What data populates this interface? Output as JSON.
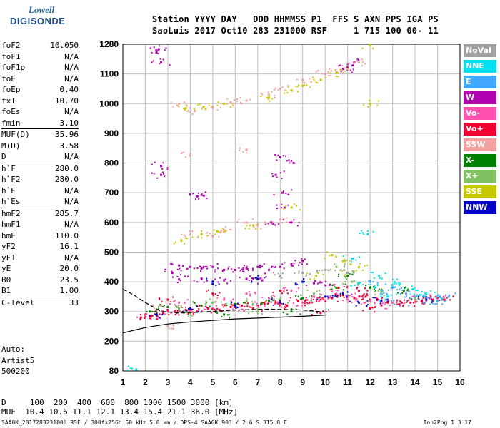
{
  "logo": {
    "top": "Lowell",
    "main": "DIGISONDE"
  },
  "header": {
    "line1": "Station YYYY DAY   DDD HHMMSS P1  FFS S AXN PPS IGA PS",
    "line2": "SaoLuis 2017 Oct10 283 231000 RSF     1 715 100 00- 11"
  },
  "params": [
    [
      [
        "foF2",
        "10.050"
      ],
      [
        "foF1",
        "N/A"
      ],
      [
        "foF1p",
        "N/A"
      ],
      [
        "foE",
        "N/A"
      ],
      [
        "foEp",
        "0.40"
      ],
      [
        "fxI",
        "10.70"
      ],
      [
        "foEs",
        "N/A"
      ],
      [
        "fmin",
        "3.10"
      ]
    ],
    [
      [
        "MUF(D)",
        "35.96"
      ],
      [
        "M(D)",
        "3.58"
      ],
      [
        "D",
        "N/A"
      ]
    ],
    [
      [
        "h`F",
        "280.0"
      ],
      [
        "h`F2",
        "280.0"
      ],
      [
        "h`E",
        "N/A"
      ],
      [
        "h`Es",
        "N/A"
      ]
    ],
    [
      [
        "hmF2",
        "285.7"
      ],
      [
        "hmF1",
        "N/A"
      ],
      [
        "hmE",
        "110.0"
      ],
      [
        "yF2",
        "16.1"
      ],
      [
        "yF1",
        "N/A"
      ],
      [
        "yE",
        "20.0"
      ],
      [
        "B0",
        "23.5"
      ],
      [
        "B1",
        "1.00"
      ]
    ],
    [
      [
        "C-level",
        "33"
      ]
    ]
  ],
  "auto": {
    "line1": "Auto:",
    "line2": "Artist5",
    "line3": "500200"
  },
  "legend": [
    {
      "label": "NoVal",
      "color": "#a0a0a0"
    },
    {
      "label": "NNE",
      "color": "#00e0f0"
    },
    {
      "label": "E",
      "color": "#40a8ff"
    },
    {
      "label": "W",
      "color": "#b000b0"
    },
    {
      "label": "Vo-",
      "color": "#ff50b0"
    },
    {
      "label": "Vo+",
      "color": "#f00030"
    },
    {
      "label": "SSW",
      "color": "#f4a0a0"
    },
    {
      "label": "X-",
      "color": "#008000"
    },
    {
      "label": "X+",
      "color": "#80c060"
    },
    {
      "label": "SSE",
      "color": "#c8c800"
    },
    {
      "label": "NNW",
      "color": "#0000c8"
    }
  ],
  "bottom": {
    "line1": "D     100  200  400  600  800 1000 1500 3000 [km]",
    "line2": "MUF  10.4 10.6 11.1 12.1 13.4 15.4 21.1 36.0 [MHz]"
  },
  "footer": {
    "left": "SAA0K_2017283231000.RSF / 300fx256h 50 kHz 5.0 km / DPS-4 SAA0K 903 / 2.6 S 315.8 E",
    "right": "Ion2Png 1.3.17"
  },
  "chart_data": {
    "type": "scatter",
    "xlabel": "",
    "ylabel": "",
    "xlim": [
      1,
      16
    ],
    "ylim": [
      80,
      1280
    ],
    "x_ticks": [
      1,
      2,
      3,
      4,
      5,
      6,
      7,
      8,
      9,
      10,
      11,
      12,
      13,
      14,
      15,
      16
    ],
    "y_ticks": [
      80,
      200,
      300,
      400,
      500,
      600,
      700,
      800,
      900,
      1000,
      1100,
      1280
    ],
    "grid": true,
    "series": [
      {
        "name": "NNE",
        "color": "#00e0f0",
        "points": [
          [
            11.5,
            395
          ],
          [
            12.2,
            380
          ],
          [
            12.8,
            350
          ],
          [
            13.3,
            390
          ],
          [
            13.9,
            375
          ],
          [
            14.5,
            360
          ],
          [
            15.0,
            345
          ],
          [
            14.2,
            355
          ],
          [
            11.2,
            478
          ],
          [
            12.4,
            420
          ],
          [
            11.9,
            560
          ],
          [
            13.1,
            398
          ],
          [
            1.6,
            86
          ]
        ]
      },
      {
        "name": "E",
        "color": "#40a8ff",
        "points": [
          [
            12.0,
            400
          ],
          [
            12.5,
            370
          ],
          [
            13.0,
            380
          ],
          [
            13.6,
            360
          ],
          [
            14.0,
            350
          ],
          [
            14.7,
            345
          ],
          [
            15.2,
            340
          ],
          [
            15.5,
            350
          ],
          [
            13.4,
            330
          ],
          [
            12.7,
            340
          ],
          [
            14.4,
            330
          ],
          [
            15.0,
            335
          ]
        ]
      },
      {
        "name": "W",
        "color": "#b000b0",
        "points": [
          [
            2.6,
            1250
          ],
          [
            2.5,
            1230
          ],
          [
            2.7,
            1170
          ],
          [
            2.7,
            790
          ],
          [
            2.7,
            760
          ],
          [
            3.5,
            455
          ],
          [
            4.0,
            450
          ],
          [
            4.5,
            445
          ],
          [
            5.0,
            450
          ],
          [
            5.5,
            440
          ],
          [
            6.0,
            440
          ],
          [
            6.5,
            445
          ],
          [
            7.0,
            450
          ],
          [
            7.5,
            440
          ],
          [
            8.0,
            450
          ],
          [
            8.5,
            460
          ],
          [
            8.0,
            820
          ],
          [
            7.8,
            760
          ],
          [
            8.1,
            700
          ],
          [
            8.6,
            800
          ],
          [
            8.2,
            650
          ],
          [
            8.5,
            600
          ],
          [
            7.6,
            600
          ],
          [
            10.8,
            1130
          ],
          [
            11.0,
            1140
          ],
          [
            11.3,
            1170
          ],
          [
            4.3,
            688
          ],
          [
            4.6,
            690
          ],
          [
            3.5,
            408
          ],
          [
            4.5,
            410
          ],
          [
            5.5,
            405
          ],
          [
            6.5,
            410
          ],
          [
            9.5,
            395
          ],
          [
            9.0,
            470
          ],
          [
            3.2,
            430
          ],
          [
            10.2,
            390
          ],
          [
            7.2,
            405
          ]
        ]
      },
      {
        "name": "Vo-",
        "color": "#ff50b0",
        "points": [
          [
            2.0,
            290
          ],
          [
            3.0,
            300
          ],
          [
            4.0,
            305
          ],
          [
            5.0,
            310
          ],
          [
            6.0,
            315
          ],
          [
            7.0,
            320
          ],
          [
            8.0,
            325
          ],
          [
            9.0,
            330
          ],
          [
            10.0,
            335
          ],
          [
            11.0,
            340
          ],
          [
            12.0,
            335
          ],
          [
            13.0,
            330
          ],
          [
            14.0,
            340
          ],
          [
            15.0,
            345
          ],
          [
            3.5,
            330
          ],
          [
            5.5,
            340
          ],
          [
            7.5,
            345
          ],
          [
            9.5,
            350
          ],
          [
            10.5,
            360
          ],
          [
            11.5,
            350
          ],
          [
            2.5,
            285
          ],
          [
            6.5,
            360
          ],
          [
            8.5,
            370
          ],
          [
            12.5,
            320
          ]
        ]
      },
      {
        "name": "Vo+",
        "color": "#f00030",
        "points": [
          [
            1.8,
            280
          ],
          [
            2.3,
            285
          ],
          [
            2.8,
            295
          ],
          [
            3.3,
            300
          ],
          [
            3.8,
            305
          ],
          [
            4.3,
            300
          ],
          [
            4.8,
            310
          ],
          [
            5.3,
            305
          ],
          [
            5.8,
            315
          ],
          [
            6.3,
            320
          ],
          [
            6.8,
            310
          ],
          [
            7.3,
            325
          ],
          [
            7.8,
            330
          ],
          [
            8.3,
            320
          ],
          [
            8.8,
            335
          ],
          [
            9.3,
            330
          ],
          [
            9.8,
            340
          ],
          [
            10.3,
            345
          ],
          [
            10.8,
            355
          ],
          [
            11.3,
            345
          ],
          [
            11.8,
            350
          ],
          [
            12.3,
            340
          ],
          [
            12.8,
            330
          ],
          [
            13.3,
            325
          ],
          [
            13.8,
            330
          ],
          [
            14.3,
            335
          ],
          [
            14.8,
            340
          ],
          [
            15.3,
            340
          ],
          [
            9.8,
            295
          ],
          [
            10.6,
            380
          ],
          [
            11.5,
            370
          ],
          [
            8.0,
            370
          ],
          [
            5.0,
            360
          ],
          [
            3.0,
            340
          ],
          [
            12.0,
            310
          ]
        ]
      },
      {
        "name": "SSW",
        "color": "#f4a0a0",
        "points": [
          [
            4.0,
            560
          ],
          [
            5.0,
            555
          ],
          [
            5.5,
            575
          ],
          [
            6.5,
            600
          ],
          [
            7.0,
            590
          ],
          [
            8.0,
            610
          ],
          [
            3.5,
            1000
          ],
          [
            4.2,
            975
          ],
          [
            5.0,
            990
          ],
          [
            5.8,
            1005
          ],
          [
            6.5,
            1010
          ],
          [
            7.5,
            1030
          ],
          [
            8.0,
            1050
          ],
          [
            9.0,
            1080
          ],
          [
            10.0,
            1100
          ],
          [
            11.0,
            1130
          ],
          [
            11.5,
            1170
          ],
          [
            10.5,
            1110
          ],
          [
            4.0,
            825
          ],
          [
            6.5,
            845
          ],
          [
            3.0,
            250
          ],
          [
            2.7,
            320
          ]
        ]
      },
      {
        "name": "X-",
        "color": "#008000",
        "points": [
          [
            3.0,
            315
          ],
          [
            4.5,
            320
          ],
          [
            6.0,
            325
          ],
          [
            7.5,
            335
          ],
          [
            9.0,
            345
          ],
          [
            10.5,
            380
          ],
          [
            11.0,
            420
          ],
          [
            12.0,
            380
          ],
          [
            13.5,
            370
          ],
          [
            8.5,
            300
          ],
          [
            5.5,
            290
          ],
          [
            2.2,
            300
          ]
        ]
      },
      {
        "name": "X+",
        "color": "#80c060",
        "points": [
          [
            3.5,
            310
          ],
          [
            5.0,
            330
          ],
          [
            6.5,
            335
          ],
          [
            8.0,
            340
          ],
          [
            9.5,
            360
          ],
          [
            10.5,
            450
          ],
          [
            11.2,
            400
          ],
          [
            12.5,
            365
          ],
          [
            14.0,
            345
          ],
          [
            7.0,
            300
          ],
          [
            4.0,
            295
          ]
        ]
      },
      {
        "name": "SSE",
        "color": "#c8c800",
        "points": [
          [
            3.6,
            540
          ],
          [
            4.5,
            560
          ],
          [
            5.2,
            570
          ],
          [
            6.8,
            590
          ],
          [
            8.5,
            650
          ],
          [
            9.0,
            1060
          ],
          [
            8.5,
            1045
          ],
          [
            7.5,
            1020
          ],
          [
            9.8,
            1080
          ],
          [
            10.5,
            1105
          ],
          [
            10.8,
            470
          ],
          [
            11.5,
            450
          ],
          [
            10.3,
            490
          ],
          [
            12.0,
            1275
          ],
          [
            12.0,
            1000
          ],
          [
            3.8,
            985
          ],
          [
            4.6,
            990
          ],
          [
            5.5,
            1000
          ],
          [
            11.0,
            430
          ],
          [
            9.6,
            420
          ]
        ]
      },
      {
        "name": "NNW",
        "color": "#0000c8",
        "points": [
          [
            2.5,
            290
          ],
          [
            4.0,
            310
          ],
          [
            6.0,
            320
          ],
          [
            8.0,
            330
          ],
          [
            10.0,
            350
          ],
          [
            10.8,
            360
          ],
          [
            9.0,
            400
          ],
          [
            7.0,
            410
          ],
          [
            5.0,
            400
          ],
          [
            12.5,
            335
          ],
          [
            14.5,
            340
          ],
          [
            11.5,
            330
          ]
        ]
      },
      {
        "name": "NoVal",
        "color": "#a0a0a0",
        "points": [
          [
            8.0,
            420
          ],
          [
            9.0,
            430
          ],
          [
            10.0,
            440
          ],
          [
            11.0,
            430
          ]
        ]
      }
    ]
  }
}
